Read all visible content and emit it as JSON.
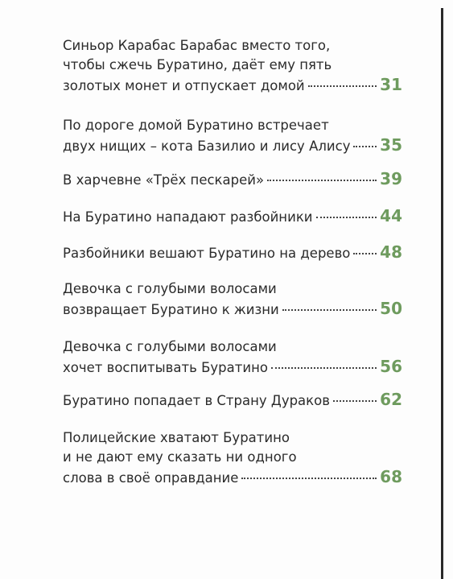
{
  "toc": [
    {
      "lines": [
        "Синьор Карабас Барабас вместо того,",
        "чтобы сжечь Буратино, даёт ему пять",
        "золотых монет и отпускает домой"
      ],
      "page": "31"
    },
    {
      "lines": [
        "По дороге домой Буратино встречает",
        "двух нищих – кота Базилио и лису Алису"
      ],
      "page": "35"
    },
    {
      "lines": [
        "В харчевне «Трёх пескарей»"
      ],
      "page": "39"
    },
    {
      "lines": [
        "На Буратино нападают разбойники"
      ],
      "page": "44"
    },
    {
      "lines": [
        "Разбойники вешают Буратино на дерево"
      ],
      "page": "48"
    },
    {
      "lines": [
        "Девочка с голубыми волосами",
        "возвращает Буратино к жизни"
      ],
      "page": "50"
    },
    {
      "lines": [
        "Девочка с голубыми волосами",
        "хочет воспитывать Буратино"
      ],
      "page": "56"
    },
    {
      "lines": [
        "Буратино попадает в Страну Дураков"
      ],
      "page": "62"
    },
    {
      "lines": [
        "Полицейские хватают Буратино",
        "и не дают ему сказать ни одного",
        "слова в своё оправдание"
      ],
      "page": "68"
    }
  ]
}
